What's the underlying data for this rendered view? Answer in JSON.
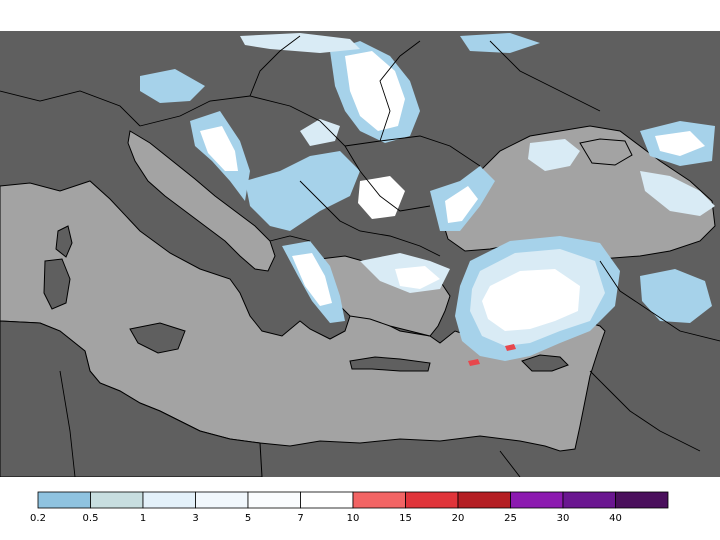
{
  "map": {
    "colors": {
      "land": "#5f5f5f",
      "sea": "#a3a3a3",
      "border": "#000000",
      "snow_light": "#a6d2ea",
      "snow_mid": "#d9ebf5",
      "snow_heavy": "#ffffff",
      "snow_extreme": "#e8474c"
    }
  },
  "legend": {
    "colors": [
      "#8fc3e0",
      "#c8dee0",
      "#e4f1fa",
      "#f1f7fc",
      "#fafcfe",
      "#ffffff",
      "#f26464",
      "#e0343a",
      "#b41e23",
      "#8c1ab0",
      "#6a1690",
      "#4a0f5c"
    ],
    "tick_labels": [
      "0.2",
      "0.5",
      "1",
      "3",
      "5",
      "7",
      "10",
      "15",
      "20",
      "25",
      "30",
      "40"
    ]
  }
}
